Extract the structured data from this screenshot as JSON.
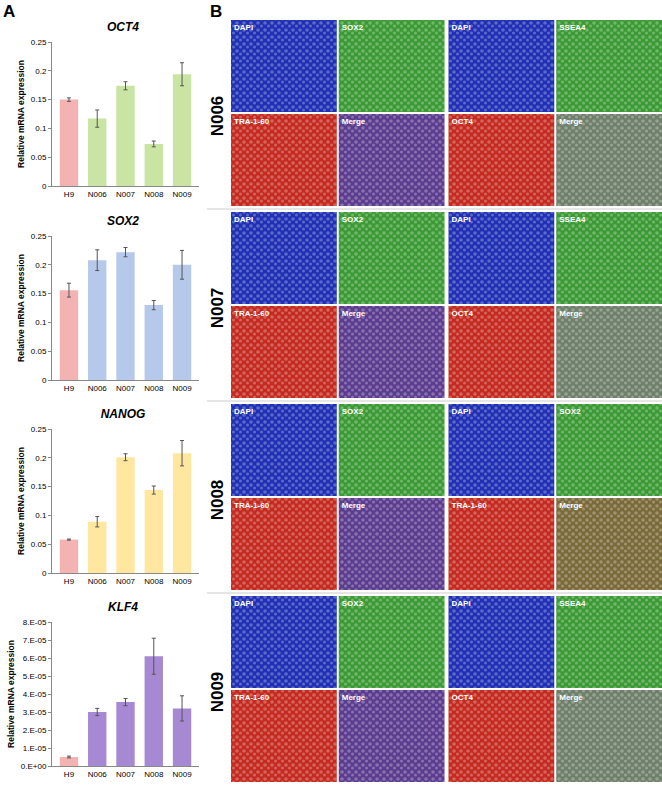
{
  "chart_data": [
    {
      "type": "bar",
      "title": "OCT4",
      "y_label": "Relative mRNA expression",
      "categories": [
        "H9",
        "N006",
        "N007",
        "N008",
        "N009"
      ],
      "values": [
        0.15,
        0.117,
        0.174,
        0.073,
        0.194
      ],
      "errors": [
        0.003,
        0.015,
        0.007,
        0.005,
        0.02
      ],
      "colors": [
        "#f4b3b3",
        "#c9e4a3",
        "#c9e4a3",
        "#c9e4a3",
        "#c9e4a3"
      ],
      "ylim": [
        0,
        0.25
      ],
      "yticks": [
        0,
        0.05,
        0.1,
        0.15,
        0.2,
        0.25
      ],
      "grid": false
    },
    {
      "type": "bar",
      "title": "SOX2",
      "y_label": "Relative mRNA expression",
      "categories": [
        "H9",
        "N006",
        "N007",
        "N008",
        "N009"
      ],
      "values": [
        0.156,
        0.208,
        0.222,
        0.13,
        0.2
      ],
      "errors": [
        0.012,
        0.018,
        0.008,
        0.008,
        0.025
      ],
      "colors": [
        "#f4b3b3",
        "#b7c9ea",
        "#b7c9ea",
        "#b7c9ea",
        "#b7c9ea"
      ],
      "ylim": [
        0,
        0.25
      ],
      "yticks": [
        0,
        0.05,
        0.1,
        0.15,
        0.2,
        0.25
      ],
      "grid": false
    },
    {
      "type": "bar",
      "title": "NANOG",
      "y_label": "Relative mRNA expression",
      "categories": [
        "H9",
        "N006",
        "N007",
        "N008",
        "N009"
      ],
      "values": [
        0.058,
        0.089,
        0.201,
        0.144,
        0.208
      ],
      "errors": [
        0.001,
        0.009,
        0.006,
        0.007,
        0.022
      ],
      "colors": [
        "#f4b3b3",
        "#ffe7a0",
        "#ffe7a0",
        "#ffe7a0",
        "#ffe7a0"
      ],
      "ylim": [
        0,
        0.25
      ],
      "yticks": [
        0,
        0.05,
        0.1,
        0.15,
        0.2,
        0.25
      ],
      "grid": false
    },
    {
      "type": "bar",
      "title": "KLF4",
      "y_label": "Relative mRNA expression",
      "categories": [
        "H9",
        "N006",
        "N007",
        "N008",
        "N009"
      ],
      "values": [
        5e-06,
        3e-05,
        3.55e-05,
        6.1e-05,
        3.2e-05
      ],
      "errors": [
        5e-07,
        2e-06,
        2e-06,
        1e-05,
        7e-06
      ],
      "colors": [
        "#f4b3b3",
        "#a689d2",
        "#a689d2",
        "#a689d2",
        "#a689d2"
      ],
      "ylim": [
        0,
        8e-05
      ],
      "yticks": [
        {
          "value": 0,
          "label": "0.E+00"
        },
        {
          "value": 1e-05,
          "label": "1.E-05"
        },
        {
          "value": 2e-05,
          "label": "2.E-05"
        },
        {
          "value": 3e-05,
          "label": "3.E-05"
        },
        {
          "value": 4e-05,
          "label": "4.E-05"
        },
        {
          "value": 5e-05,
          "label": "5.E-05"
        },
        {
          "value": 6e-05,
          "label": "6.E-05"
        },
        {
          "value": 7e-05,
          "label": "7.E-05"
        },
        {
          "value": 8e-05,
          "label": "8.E-05"
        }
      ],
      "grid": false
    }
  ],
  "figure": {
    "panel_labels": [
      "A",
      "B"
    ],
    "image_rows": [
      {
        "label": "N006",
        "groups": [
          [
            {
              "label": "DAPI",
              "color": "#1f30b5"
            },
            {
              "label": "SOX2",
              "color": "#3c9a35"
            },
            {
              "label": "TRA-1-60",
              "color": "#c42a1f"
            },
            {
              "label": "Merge",
              "color": "#5b3c8f"
            }
          ],
          [
            {
              "label": "DAPI",
              "color": "#1f30b5"
            },
            {
              "label": "SSEA4",
              "color": "#3c9a35"
            },
            {
              "label": "OCT4",
              "color": "#c42a1f"
            },
            {
              "label": "Merge",
              "color": "#6f7f6a"
            }
          ]
        ]
      },
      {
        "label": "N007",
        "groups": [
          [
            {
              "label": "DAPI",
              "color": "#1f30b5"
            },
            {
              "label": "SOX2",
              "color": "#3c9a35"
            },
            {
              "label": "TRA-1-60",
              "color": "#c42a1f"
            },
            {
              "label": "Merge",
              "color": "#5b3c8f"
            }
          ],
          [
            {
              "label": "DAPI",
              "color": "#1f30b5"
            },
            {
              "label": "SSEA4",
              "color": "#3c9a35"
            },
            {
              "label": "OCT4",
              "color": "#c42a1f"
            },
            {
              "label": "Merge",
              "color": "#6f7f6a"
            }
          ]
        ]
      },
      {
        "label": "N008",
        "groups": [
          [
            {
              "label": "DAPI",
              "color": "#1f30b5"
            },
            {
              "label": "SOX2",
              "color": "#3c9a35"
            },
            {
              "label": "TRA-1-60",
              "color": "#c42a1f"
            },
            {
              "label": "Merge",
              "color": "#5b3c8f"
            }
          ],
          [
            {
              "label": "DAPI",
              "color": "#1f30b5"
            },
            {
              "label": "SOX2",
              "color": "#3c9a35"
            },
            {
              "label": "TRA-1-60",
              "color": "#c42a1f"
            },
            {
              "label": "Merge",
              "color": "#7a6a3a"
            }
          ]
        ]
      },
      {
        "label": "N009",
        "groups": [
          [
            {
              "label": "DAPI",
              "color": "#1f30b5"
            },
            {
              "label": "SOX2",
              "color": "#3c9a35"
            },
            {
              "label": "TRA-1-60",
              "color": "#c42a1f"
            },
            {
              "label": "Merge",
              "color": "#5b3c8f"
            }
          ],
          [
            {
              "label": "DAPI",
              "color": "#1f30b5"
            },
            {
              "label": "SSEA4",
              "color": "#3c9a35"
            },
            {
              "label": "OCT4",
              "color": "#c42a1f"
            },
            {
              "label": "Merge",
              "color": "#6f7f6a"
            }
          ]
        ]
      }
    ]
  }
}
